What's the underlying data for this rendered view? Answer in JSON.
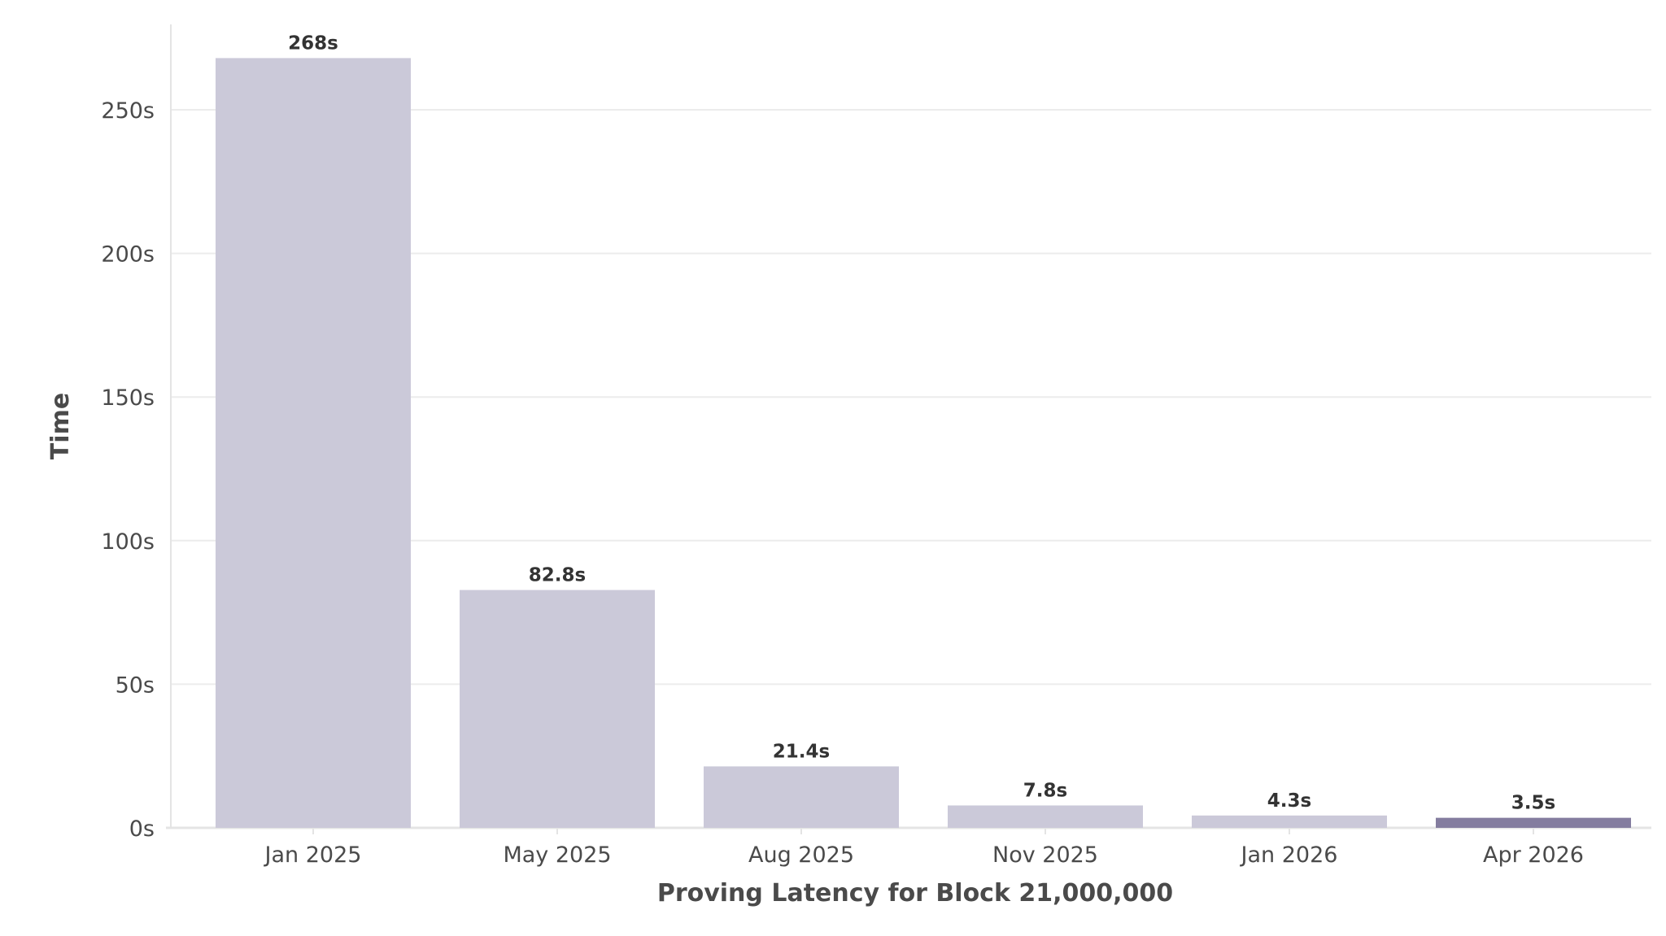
{
  "chart_data": {
    "type": "bar",
    "categories": [
      "Jan 2025",
      "May 2025",
      "Aug 2025",
      "Nov 2025",
      "Jan 2026",
      "Apr 2026"
    ],
    "values": [
      268,
      82.8,
      21.4,
      7.8,
      4.3,
      3.5
    ],
    "value_labels": [
      "268s",
      "82.8s",
      "21.4s",
      "7.8s",
      "4.3s",
      "3.5s"
    ],
    "ylabel": "Time",
    "xlabel": "Proving Latency for Block 21,000,000",
    "ylim": [
      0,
      280
    ],
    "yticks": [
      0,
      50,
      100,
      150,
      200,
      250
    ],
    "ytick_labels": [
      "0s",
      "50s",
      "100s",
      "150s",
      "200s",
      "250s"
    ],
    "grid": true,
    "colors": {
      "bar": "#cbc9d9",
      "highlight": "#847d9f",
      "grid": "#ececec",
      "axis": "#e4e4e4"
    },
    "highlight_index": 5
  }
}
